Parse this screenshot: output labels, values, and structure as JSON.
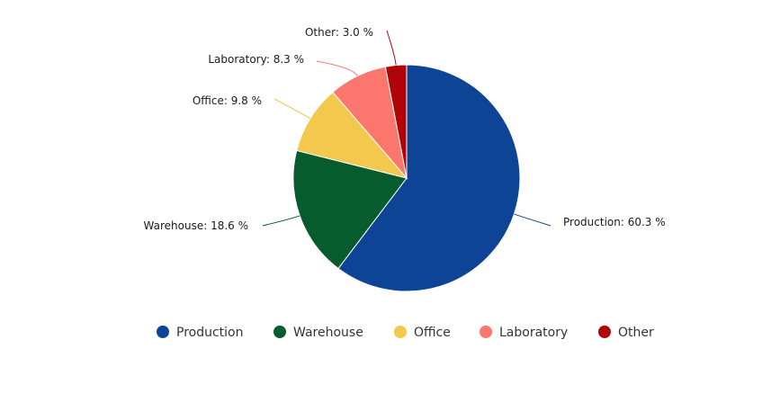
{
  "chart_data": {
    "type": "pie",
    "title": "",
    "slices": [
      {
        "name": "Production",
        "value": 60.3,
        "label": "Production: 60.3 %",
        "color": "#0e4496"
      },
      {
        "name": "Warehouse",
        "value": 18.6,
        "label": "Warehouse: 18.6 %",
        "color": "#065c2c"
      },
      {
        "name": "Office",
        "value": 9.8,
        "label": "Office: 9.8 %",
        "color": "#f2c94c"
      },
      {
        "name": "Laboratory",
        "value": 8.3,
        "label": "Laboratory: 8.3 %",
        "color": "#fb766c"
      },
      {
        "name": "Other",
        "value": 3.0,
        "label": "Other: 3.0 %",
        "color": "#b00508"
      }
    ],
    "legend": {
      "placement": "bottom",
      "items": [
        "Production",
        "Warehouse",
        "Office",
        "Laboratory",
        "Other"
      ]
    }
  }
}
